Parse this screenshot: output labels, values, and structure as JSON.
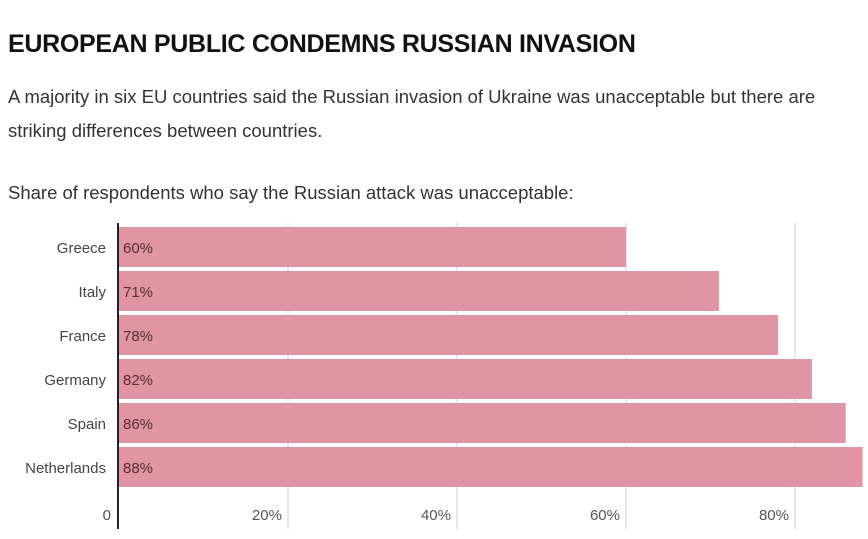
{
  "header": {
    "title": "EUROPEAN PUBLIC CONDEMNS RUSSIAN INVASION",
    "subtitle": "A majority in six EU countries said the Russian invasion of Ukraine was unacceptable but there are striking differences between countries."
  },
  "colors": {
    "bar": "#df95a3",
    "axis": "#222222",
    "grid": "#cfcfcf"
  },
  "chart_data": {
    "type": "bar",
    "orientation": "horizontal",
    "title": "Share of respondents who say the Russian attack was unacceptable:",
    "categories": [
      "Greece",
      "Italy",
      "France",
      "Germany",
      "Spain",
      "Netherlands"
    ],
    "values": [
      60,
      71,
      78,
      82,
      86,
      88
    ],
    "value_labels": [
      "60%",
      "71%",
      "78%",
      "82%",
      "86%",
      "88%"
    ],
    "xlabel": "",
    "ylabel": "",
    "xlim": [
      0,
      88
    ],
    "xticks": [
      0,
      20,
      40,
      60,
      80
    ],
    "xtick_labels": [
      "0",
      "20%",
      "40%",
      "60%",
      "80%"
    ],
    "grid": true,
    "legend": "none"
  }
}
